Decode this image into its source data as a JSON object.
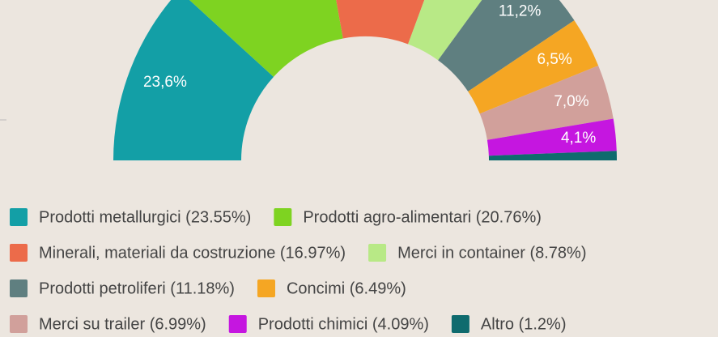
{
  "chart_data": {
    "type": "half-donut",
    "categories": [
      "Prodotti metallurgici (23.55%)",
      "Prodotti agro-alimentari (20.76%)",
      "Minerali, materiali da costruzione (16.97%)",
      "Merci in container (8.78%)",
      "Prodotti petroliferi (11.18%)",
      "Concimi (6.49%)",
      "Merci su trailer (6.99%)",
      "Prodotti chimici (4.09%)",
      "Altro (1.2%)"
    ],
    "values": [
      23.55,
      20.76,
      16.97,
      8.78,
      11.18,
      6.49,
      6.99,
      4.09,
      1.2
    ],
    "value_labels": [
      "23,6%",
      null,
      null,
      null,
      "11,2%",
      "6,5%",
      "7,0%",
      "4,1%",
      null
    ],
    "colors": [
      "#139fa6",
      "#7ed321",
      "#ec6b4a",
      "#b8e986",
      "#5f7f80",
      "#f5a623",
      "#d1a09b",
      "#c516e0",
      "#0f6b6e"
    ]
  }
}
